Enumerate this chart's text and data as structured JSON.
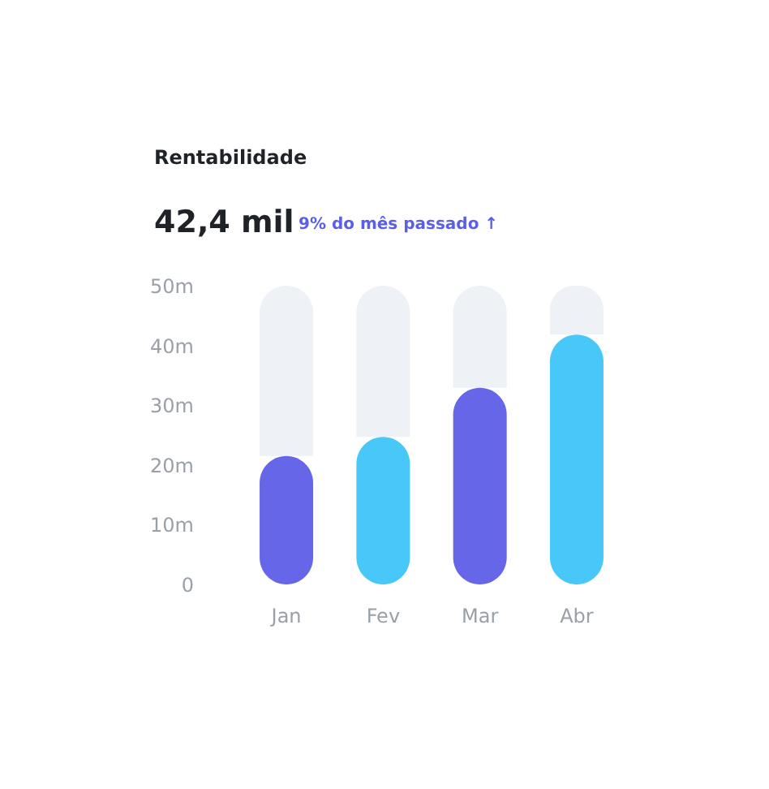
{
  "chart_data": {
    "type": "bar",
    "title": "Rentabilidade",
    "subtitle": "42,4 mil",
    "annotations": [
      "9% do mês passado ↑"
    ],
    "categories": [
      "Jan",
      "Fev",
      "Mar",
      "Abr"
    ],
    "stacked": true,
    "series": [
      {
        "colors": [
          "#6567e8",
          "#48c8f8",
          "#6567e8",
          "#48c8f8"
        ],
        "values": [
          21.5,
          24.7,
          32.9,
          41.8
        ]
      },
      {
        "type": "bar",
        "color": "#eef1f5",
        "values": [
          28.5,
          25.3,
          17.1,
          8.2
        ]
      }
    ],
    "ylim": [
      0,
      50
    ],
    "yticks": [
      0,
      {
        "value": 10,
        "label": "10m"
      },
      {
        "value": 20,
        "label": "20m"
      },
      {
        "value": 30,
        "label": "30m"
      },
      {
        "value": 40,
        "label": "40m"
      },
      {
        "value": 50,
        "label": "50m"
      }
    ],
    "grid": false
  }
}
